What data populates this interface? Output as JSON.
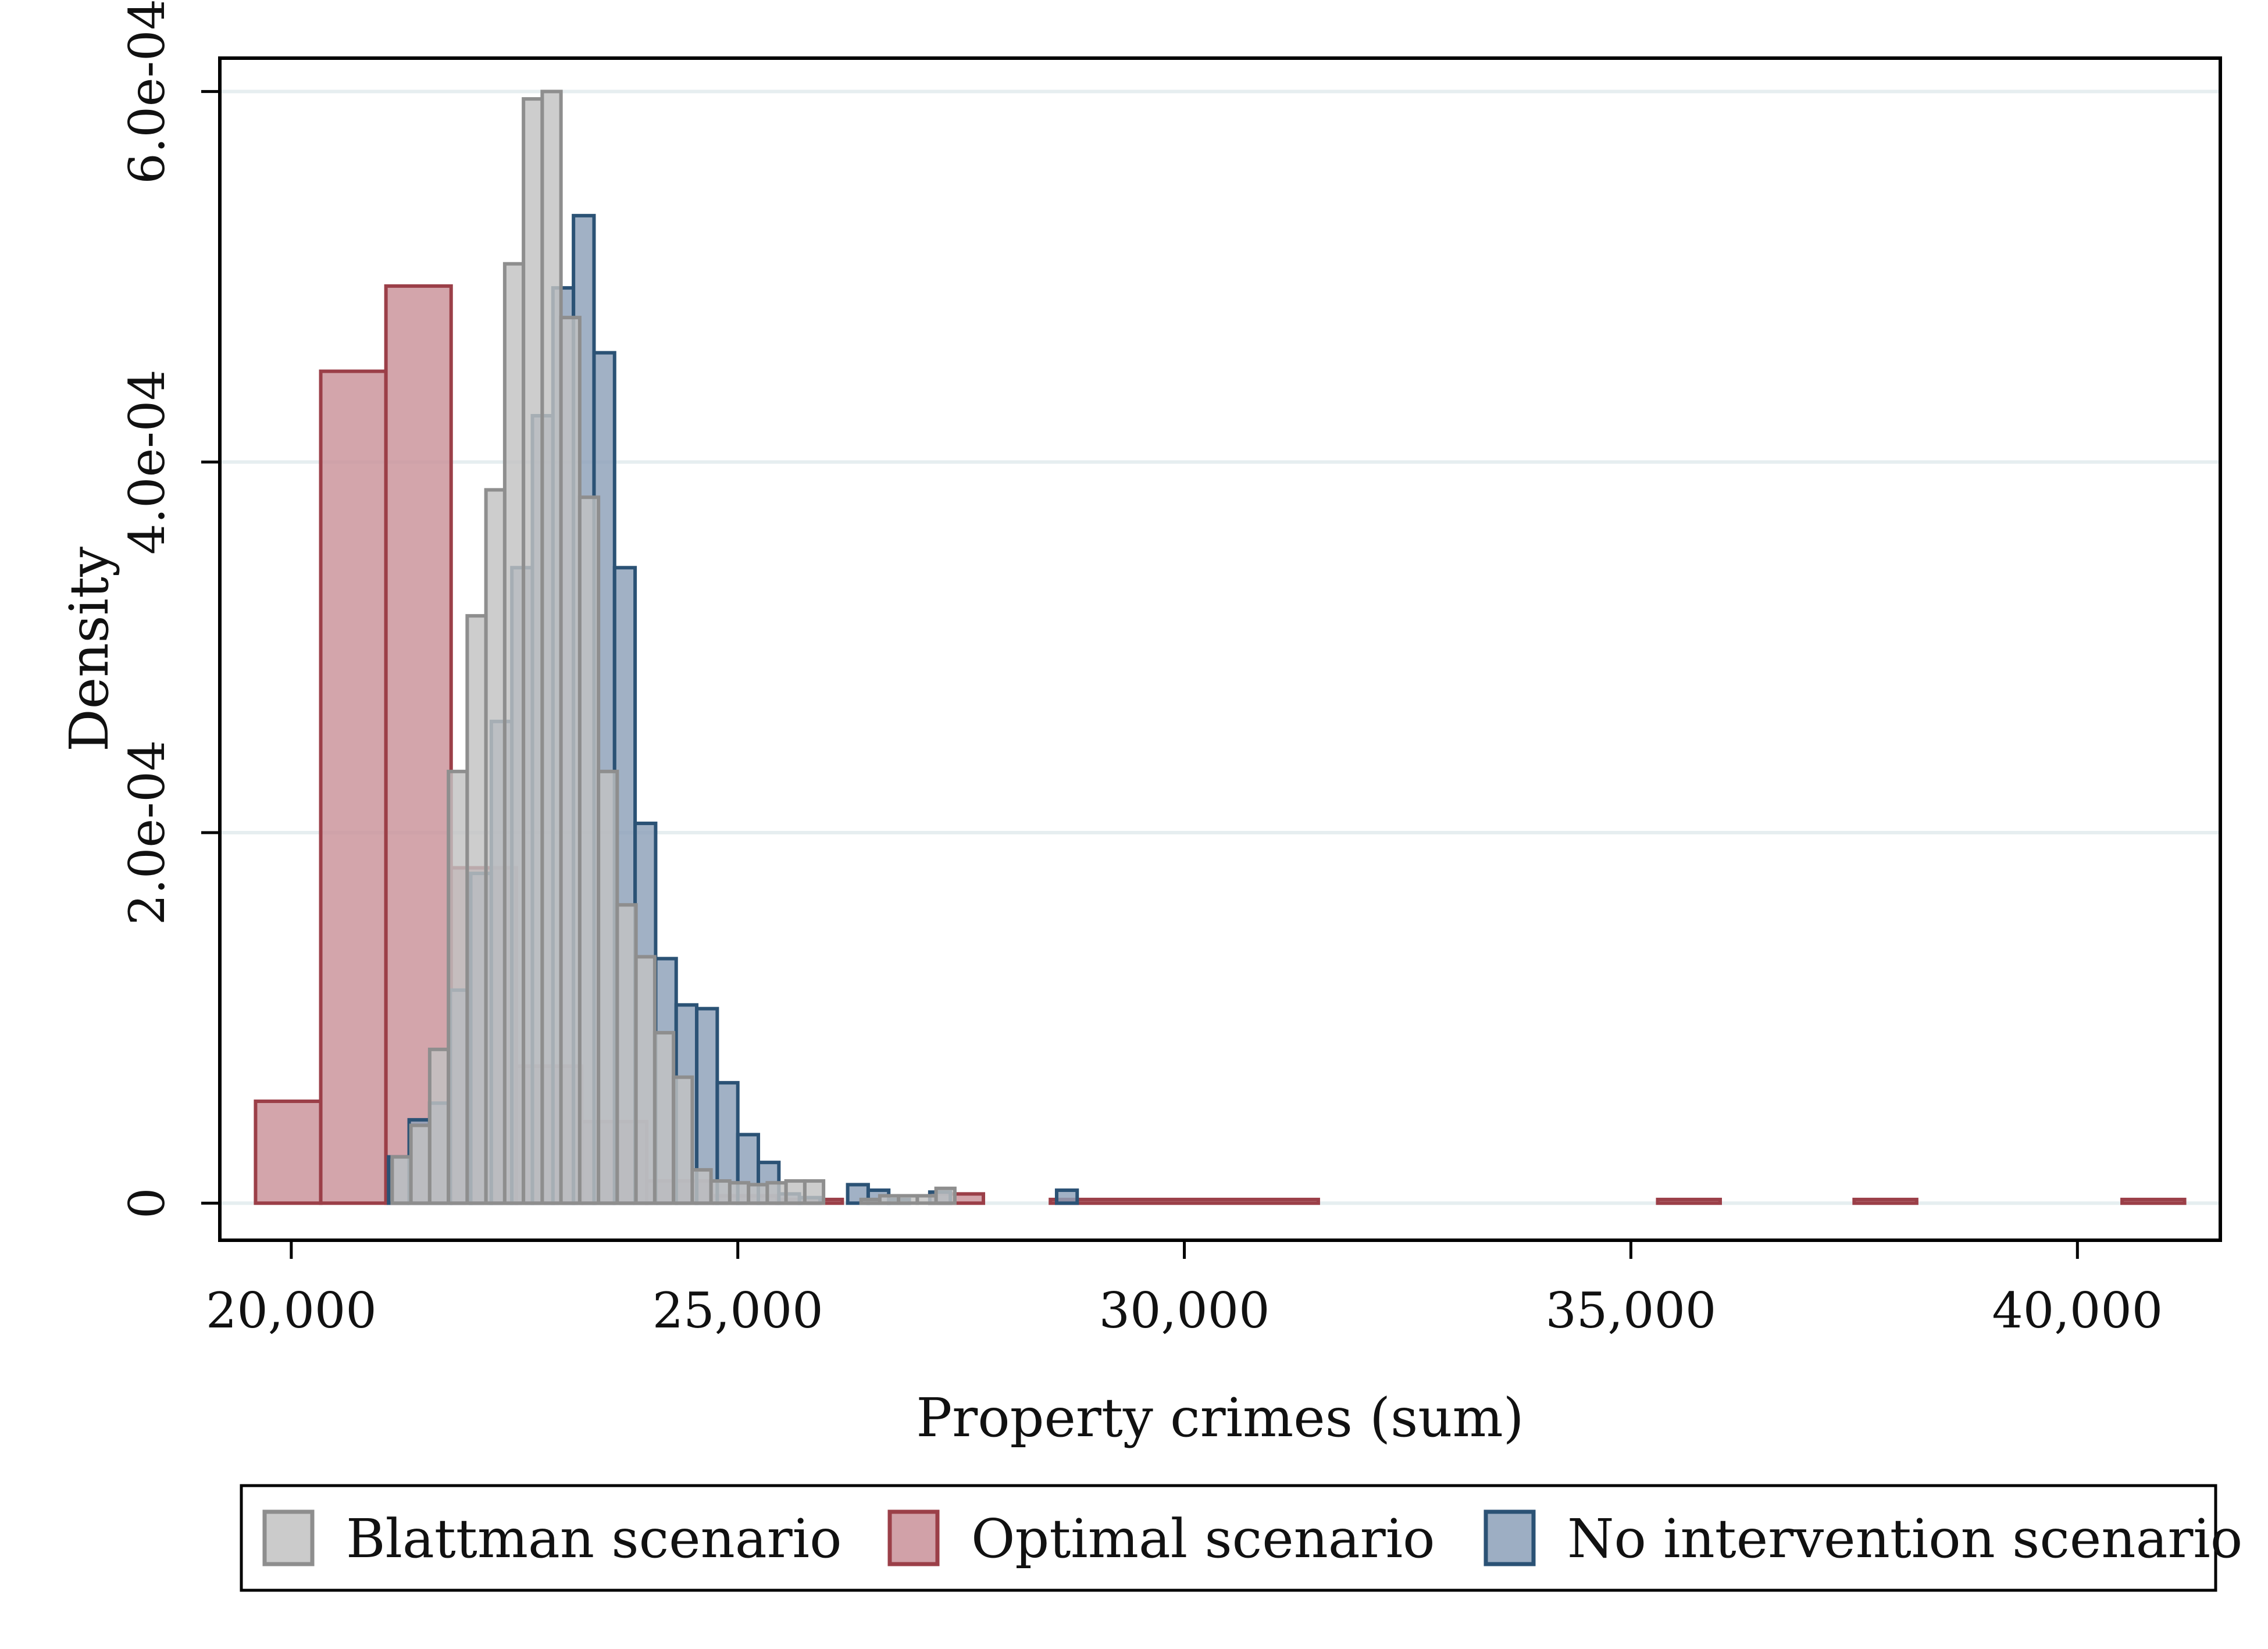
{
  "chart_data": {
    "type": "histogram",
    "xlabel": "Property crimes (sum)",
    "ylabel": "Density",
    "xlim": [
      19200,
      41600
    ],
    "ylim": [
      -2e-05,
      0.000618
    ],
    "xticks": [
      20000,
      25000,
      30000,
      35000,
      40000
    ],
    "xtick_labels": [
      "20,000",
      "25,000",
      "30,000",
      "35,000",
      "40,000"
    ],
    "yticks": [
      0,
      0.0002,
      0.0004,
      0.0006
    ],
    "ytick_labels": [
      "0",
      "2.0e-04",
      "4.0e-04",
      "6.0e-04"
    ],
    "grid": "horizontal",
    "legend_position": "bottom",
    "series": [
      {
        "name": "Optimal scenario",
        "fill": "#c99199",
        "stroke": "#9b3f48",
        "bins": [
          [
            19600,
            20330,
            5.5e-05
          ],
          [
            20330,
            21060,
            0.000449
          ],
          [
            21060,
            21790,
            0.000495
          ],
          [
            21790,
            22520,
            0.000181
          ],
          [
            22520,
            23250,
            7.4e-05
          ],
          [
            23250,
            23980,
            4.4e-05
          ],
          [
            23980,
            24710,
            1.2e-05
          ],
          [
            24710,
            25440,
            4e-06
          ],
          [
            25440,
            26170,
            2e-06
          ],
          [
            27150,
            27750,
            5e-06
          ],
          [
            28500,
            31500,
            2e-06
          ],
          [
            35300,
            36000,
            2e-06
          ],
          [
            37500,
            38200,
            2e-06
          ],
          [
            40500,
            41200,
            2e-06
          ]
        ]
      },
      {
        "name": "No intervention scenario",
        "fill": "#8ca0b8",
        "stroke": "#2b5275",
        "bins": [
          [
            21090,
            21320,
            2.5e-05
          ],
          [
            21320,
            21550,
            4.5e-05
          ],
          [
            21550,
            21780,
            5.4e-05
          ],
          [
            21780,
            22010,
            0.000115
          ],
          [
            22010,
            22240,
            0.000178
          ],
          [
            22240,
            22470,
            0.00026
          ],
          [
            22470,
            22700,
            0.000343
          ],
          [
            22700,
            22930,
            0.000425
          ],
          [
            22930,
            23160,
            0.000494
          ],
          [
            23160,
            23390,
            0.000533
          ],
          [
            23390,
            23620,
            0.000459
          ],
          [
            23620,
            23850,
            0.000343
          ],
          [
            23850,
            24080,
            0.000205
          ],
          [
            24080,
            24310,
            0.000132
          ],
          [
            24310,
            24540,
            0.000107
          ],
          [
            24540,
            24770,
            0.000105
          ],
          [
            24770,
            25000,
            6.5e-05
          ],
          [
            25000,
            25230,
            3.7e-05
          ],
          [
            25230,
            25460,
            2.2e-05
          ],
          [
            25460,
            25690,
            5e-06
          ],
          [
            25690,
            25920,
            3e-06
          ],
          [
            26230,
            26460,
            1e-05
          ],
          [
            26460,
            26690,
            7e-06
          ],
          [
            26690,
            26920,
            2e-06
          ],
          [
            27150,
            27380,
            6e-06
          ],
          [
            28570,
            28800,
            7e-06
          ]
        ]
      },
      {
        "name": "Blattman scenario",
        "fill": "#c2c2c2",
        "stroke": "#8e8e8e",
        "bins": [
          [
            21130,
            21340,
            2.5e-05
          ],
          [
            21340,
            21550,
            4.2e-05
          ],
          [
            21550,
            21760,
            8.3e-05
          ],
          [
            21760,
            21970,
            0.000233
          ],
          [
            21970,
            22180,
            0.000317
          ],
          [
            22180,
            22390,
            0.000385
          ],
          [
            22390,
            22600,
            0.000507
          ],
          [
            22600,
            22810,
            0.000596
          ],
          [
            22810,
            23020,
            0.0006
          ],
          [
            23020,
            23230,
            0.000478
          ],
          [
            23230,
            23440,
            0.000381
          ],
          [
            23440,
            23650,
            0.000233
          ],
          [
            23650,
            23860,
            0.000161
          ],
          [
            23860,
            24070,
            0.000133
          ],
          [
            24070,
            24280,
            9.2e-05
          ],
          [
            24280,
            24490,
            6.8e-05
          ],
          [
            24490,
            24700,
            1.8e-05
          ],
          [
            24700,
            24910,
            1.2e-05
          ],
          [
            24910,
            25120,
            1.1e-05
          ],
          [
            25120,
            25330,
            1e-05
          ],
          [
            25330,
            25540,
            1.1e-05
          ],
          [
            25540,
            25750,
            1.2e-05
          ],
          [
            25750,
            25960,
            1.2e-05
          ],
          [
            26380,
            26590,
            2e-06
          ],
          [
            26590,
            26800,
            4e-06
          ],
          [
            26800,
            27010,
            4e-06
          ],
          [
            27010,
            27220,
            4e-06
          ],
          [
            27220,
            27430,
            8e-06
          ]
        ]
      }
    ],
    "legend": [
      "Blattman scenario",
      "Optimal scenario",
      "No intervention scenario"
    ]
  }
}
